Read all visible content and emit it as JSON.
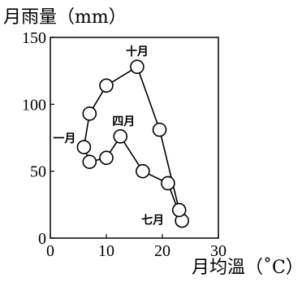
{
  "chart_data": {
    "type": "line",
    "xlabel": "月均溫（˚C）",
    "ylabel": "月雨量（mm）",
    "xlim": [
      0,
      30
    ],
    "ylim": [
      0,
      150
    ],
    "xticks": [
      "0",
      "10",
      "20",
      "30"
    ],
    "yticks": [
      "0",
      "50",
      "100",
      "150"
    ],
    "grid": false,
    "closed_loop": true,
    "series": [
      {
        "points": [
          {
            "x": 6,
            "y": 68
          },
          {
            "x": 7,
            "y": 57
          },
          {
            "x": 10,
            "y": 60
          },
          {
            "x": 12.5,
            "y": 76
          },
          {
            "x": 16.5,
            "y": 50
          },
          {
            "x": 21,
            "y": 41
          },
          {
            "x": 23.5,
            "y": 13
          },
          {
            "x": 23,
            "y": 21
          },
          {
            "x": 19.5,
            "y": 81
          },
          {
            "x": 15.5,
            "y": 128
          },
          {
            "x": 10,
            "y": 114
          },
          {
            "x": 7,
            "y": 93
          }
        ]
      }
    ],
    "annotations": [
      {
        "text": "一月",
        "point_index": 0
      },
      {
        "text": "四月",
        "point_index": 3
      },
      {
        "text": "七月",
        "point_index": 6
      },
      {
        "text": "十月",
        "point_index": 9
      }
    ]
  }
}
